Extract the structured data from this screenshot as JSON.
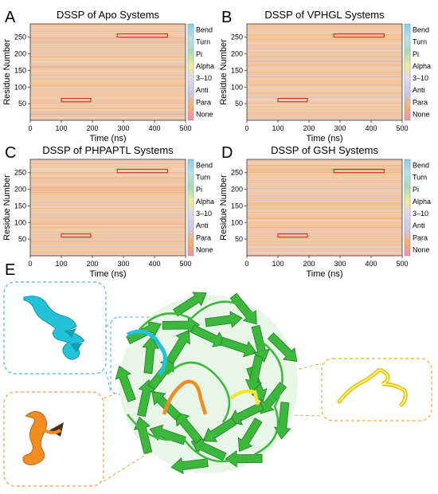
{
  "panel_letters": [
    "A",
    "B",
    "C",
    "D",
    "E"
  ],
  "axes": {
    "xlabel": "Time (ns)",
    "ylabel": "Residue Number",
    "xticks": [
      "0",
      "100",
      "200",
      "300",
      "400",
      "500"
    ],
    "yticks": [
      "50",
      "100",
      "150",
      "200",
      "250"
    ]
  },
  "colorbar": {
    "labels": [
      "Bend",
      "Turn",
      "Pi",
      "Alpha",
      "3–10",
      "Anti",
      "Para",
      "None"
    ],
    "colors": [
      "#7ecfe8",
      "#b6e3ea",
      "#a6dcb8",
      "#f0ec9a",
      "#ddd8f0",
      "#c8c8ea",
      "#f6b06e",
      "#f48cb6"
    ]
  },
  "stripe_colors": {
    "background": "#f2c79d",
    "strong": "#e6a56a",
    "light": "#f3d9c2",
    "bluish": "#c9c6e6",
    "pink": "#efb1c2",
    "gray": "#e3d9d0"
  },
  "chart_data": [
    {
      "type": "heatmap",
      "title": "DSSP of Apo Systems",
      "xlabel": "Time (ns)",
      "ylabel": "Residue Number",
      "xlim": [
        0,
        500
      ],
      "ylim": [
        0,
        290
      ],
      "legend": "right (colorbar)",
      "highlight_boxes": [
        {
          "time": [
            100,
            195
          ],
          "residues": [
            56,
            66
          ]
        },
        {
          "time": [
            280,
            442
          ],
          "residues": [
            250,
            260
          ]
        }
      ]
    },
    {
      "type": "heatmap",
      "title": "DSSP of VPHGL Systems",
      "xlabel": "Time (ns)",
      "ylabel": "Residue Number",
      "xlim": [
        0,
        500
      ],
      "ylim": [
        0,
        290
      ],
      "legend": "right (colorbar)",
      "highlight_boxes": [
        {
          "time": [
            100,
            195
          ],
          "residues": [
            56,
            66
          ]
        },
        {
          "time": [
            280,
            442
          ],
          "residues": [
            250,
            260
          ]
        }
      ]
    },
    {
      "type": "heatmap",
      "title": "DSSP of PHPAPTL Systems",
      "xlabel": "Time (ns)",
      "ylabel": "Residue Number",
      "xlim": [
        0,
        500
      ],
      "ylim": [
        0,
        290
      ],
      "legend": "right (colorbar)",
      "highlight_boxes": [
        {
          "time": [
            100,
            195
          ],
          "residues": [
            56,
            66
          ]
        },
        {
          "time": [
            280,
            442
          ],
          "residues": [
            250,
            260
          ]
        }
      ]
    },
    {
      "type": "heatmap",
      "title": "DSSP of GSH Systems",
      "xlabel": "Time (ns)",
      "ylabel": "Residue Number",
      "xlim": [
        0,
        500
      ],
      "ylim": [
        0,
        290
      ],
      "legend": "right (colorbar)",
      "highlight_boxes": [
        {
          "time": [
            100,
            195
          ],
          "residues": [
            56,
            66
          ]
        },
        {
          "time": [
            280,
            442
          ],
          "residues": [
            250,
            260
          ]
        }
      ]
    }
  ],
  "structure": {
    "protein_color": "#3cb93c",
    "protein_dark": "#1f7a1f",
    "region_colors": {
      "cyan": "#22c3d8",
      "orange": "#f08c20",
      "yellow": "#f2e23a"
    },
    "callout_border_colors": {
      "cyan": "#4fb3e8",
      "orange": "#f0a050",
      "yellow": "#e0b040"
    }
  }
}
